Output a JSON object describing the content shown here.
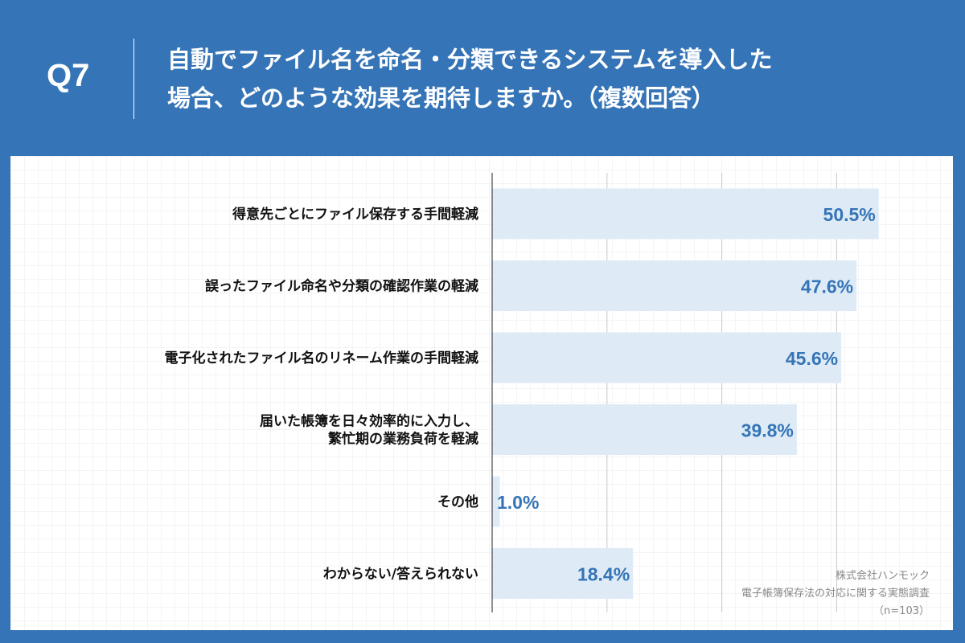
{
  "header": {
    "question": "Q7",
    "title_line1": "自動でファイル名を命名・分類できるシステムを導入した",
    "title_line2": "場合、どのような効果を期待しますか。（複数回答）"
  },
  "source": {
    "company": "株式会社ハンモック",
    "survey": "電子帳簿保存法の対応に関する実態調査",
    "sample": "（n=103）"
  },
  "chart_data": {
    "type": "bar",
    "orientation": "horizontal",
    "categories": [
      [
        "得意先ごとにファイル保存する手間軽減"
      ],
      [
        "誤ったファイル命名や分類の確認作業の軽減"
      ],
      [
        "電子化されたファイル名のリネーム作業の手間軽減"
      ],
      [
        "届いた帳簿を日々効率的に入力し、",
        "繁忙期の業務負荷を軽減"
      ],
      [
        "その他"
      ],
      [
        "わからない/答えられない"
      ]
    ],
    "values": [
      50.5,
      47.6,
      45.6,
      39.8,
      1.0,
      18.4
    ],
    "value_labels": [
      "50.5%",
      "47.6%",
      "45.6%",
      "39.8%",
      "1.0%",
      "18.4%"
    ],
    "xlim": [
      0,
      60
    ],
    "gridlines": [
      15,
      30,
      45
    ],
    "colors": {
      "bar": "#deebf7",
      "label": "#3574b6",
      "background": "#3574b6"
    }
  }
}
